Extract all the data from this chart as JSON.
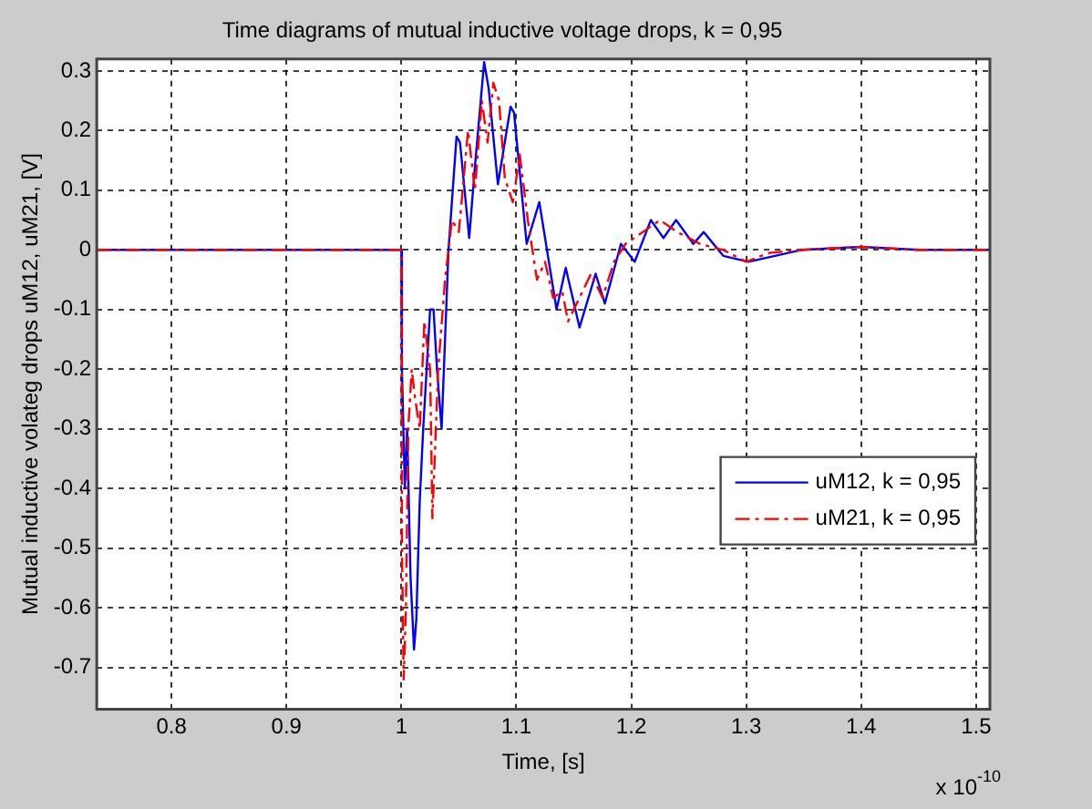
{
  "chart_data": {
    "type": "line",
    "title": "Time diagrams of mutual inductive voltage drops, k = 0,95",
    "xlabel": "Time, [s]",
    "ylabel": "Mutual inductive volateg drops uM12, uM21, [V]",
    "annotations": [
      "x 10$^{-10}$"
    ],
    "xlim": [
      0.735,
      1.512
    ],
    "xticks": [
      0.8,
      0.9,
      1,
      1.1,
      1.2,
      1.3,
      1.4,
      1.5
    ],
    "ylim": [
      -0.77,
      0.32
    ],
    "yticks": [
      -0.7,
      -0.6,
      -0.5,
      -0.4,
      -0.3,
      -0.2,
      -0.1,
      0,
      0.1,
      0.2,
      0.3
    ],
    "grid": true,
    "legend": "right",
    "marker": "none",
    "series": [
      {
        "name": "uM12, k = 0,95",
        "color": "#0000ff",
        "line_style": "solid",
        "x": [
          0.735,
          1.0,
          1.0005,
          1.003,
          1.005,
          1.008,
          1.011,
          1.013,
          1.016,
          1.019,
          1.022,
          1.025,
          1.028,
          1.031,
          1.035,
          1.041,
          1.048,
          1.051,
          1.059,
          1.064,
          1.072,
          1.076,
          1.084,
          1.095,
          1.098,
          1.109,
          1.12,
          1.135,
          1.143,
          1.155,
          1.169,
          1.177,
          1.191,
          1.203,
          1.217,
          1.228,
          1.239,
          1.254,
          1.263,
          1.28,
          1.302,
          1.325,
          1.348,
          1.4,
          1.45,
          1.512
        ],
        "values": [
          0,
          0,
          -0.2,
          -0.4,
          -0.3,
          -0.55,
          -0.67,
          -0.62,
          -0.42,
          -0.3,
          -0.2,
          -0.1,
          -0.1,
          -0.2,
          -0.3,
          0,
          0.19,
          0.18,
          0.02,
          0.14,
          0.315,
          0.27,
          0.11,
          0.24,
          0.23,
          0.01,
          0.08,
          -0.1,
          -0.03,
          -0.13,
          -0.04,
          -0.09,
          0.01,
          -0.02,
          0.05,
          0.02,
          0.05,
          0.01,
          0.03,
          -0.01,
          -0.02,
          -0.01,
          0,
          0.005,
          0,
          0
        ]
      },
      {
        "name": "uM21, k = 0,95",
        "color": "#ff0000",
        "line_style": "dashdot",
        "x": [
          0.735,
          1.0,
          1.0005,
          1.002,
          1.004,
          1.006,
          1.009,
          1.012,
          1.016,
          1.02,
          1.025,
          1.027,
          1.032,
          1.038,
          1.044,
          1.05,
          1.058,
          1.064,
          1.07,
          1.075,
          1.08,
          1.085,
          1.09,
          1.097,
          1.103,
          1.11,
          1.118,
          1.125,
          1.132,
          1.14,
          1.145,
          1.155,
          1.165,
          1.175,
          1.185,
          1.195,
          1.21,
          1.225,
          1.24,
          1.26,
          1.28,
          1.3,
          1.32,
          1.35,
          1.4,
          1.45,
          1.512
        ],
        "values": [
          0,
          0,
          -0.5,
          -0.72,
          -0.6,
          -0.3,
          -0.2,
          -0.25,
          -0.3,
          -0.12,
          -0.2,
          -0.45,
          -0.2,
          -0.05,
          0.05,
          0.03,
          0.2,
          0.1,
          0.25,
          0.18,
          0.28,
          0.25,
          0.12,
          0.08,
          0.16,
          0.05,
          -0.05,
          -0.02,
          -0.08,
          -0.07,
          -0.12,
          -0.08,
          -0.04,
          -0.08,
          -0.02,
          0.01,
          0.03,
          0.05,
          0.03,
          0.01,
          0,
          -0.02,
          -0.005,
          0,
          0.005,
          0,
          0
        ]
      }
    ]
  }
}
